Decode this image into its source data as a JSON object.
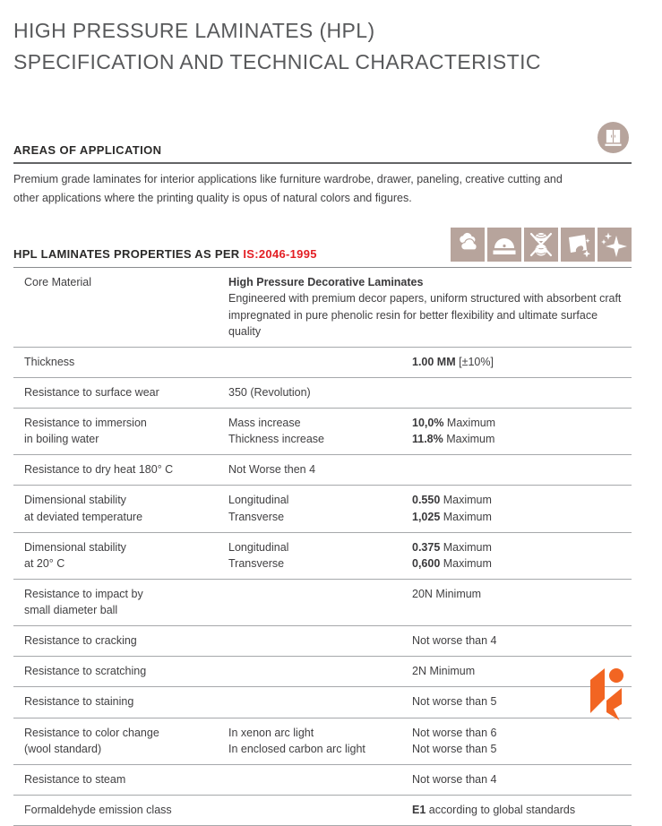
{
  "title": {
    "line1": "HIGH PRESSURE LAMINATES (HPL)",
    "line2": "SPECIFICATION AND TECHNICAL CHARACTERISTIC"
  },
  "areas": {
    "heading": "AREAS OF APPLICATION",
    "body_line1": "Premium grade laminates for interior applications like furniture wardrobe, drawer, paneling, creative cutting and",
    "body_line2": "other applications where the printing quality is opus of natural colors and figures.",
    "icon": "wardrobe-icon"
  },
  "properties_header": {
    "heading_prefix": "HPL LAMINATES PROPERTIES AS PER ",
    "standard": "IS:2046-1995",
    "icons": [
      "clouds-icon",
      "saw-blade-icon",
      "no-yarn-icon",
      "easy-clean-icon",
      "sparkle-icon"
    ]
  },
  "colors": {
    "accent_red": "#e31e24",
    "icon_taupe": "#b7a49c",
    "logo_orange": "#f26522",
    "title_gray": "#58595b"
  },
  "table": {
    "rows": [
      {
        "cells": [
          {
            "lines": [
              {
                "t": "Core Material"
              }
            ]
          },
          {
            "span": true,
            "lines": [
              {
                "b": "High Pressure Decorative Laminates"
              },
              {
                "t": "Engineered with premium decor papers, uniform structured with absorbent craft"
              },
              {
                "t": "impregnated in pure phenolic resin for better flexibility and ultimate surface quality"
              }
            ]
          }
        ]
      },
      {
        "cells": [
          {
            "lines": [
              {
                "t": "Thickness"
              }
            ]
          },
          {
            "lines": []
          },
          {
            "lines": [
              {
                "b": "1.00 MM",
                "t": " [±10%]"
              }
            ]
          }
        ]
      },
      {
        "cells": [
          {
            "lines": [
              {
                "t": "Resistance to surface wear"
              }
            ]
          },
          {
            "lines": [
              {
                "t": "350 (Revolution)"
              }
            ]
          },
          {
            "lines": []
          }
        ]
      },
      {
        "cells": [
          {
            "lines": [
              {
                "t": "Resistance to immersion"
              },
              {
                "t": "in boiling water"
              }
            ]
          },
          {
            "lines": [
              {
                "t": "Mass increase"
              },
              {
                "t": "Thickness increase"
              }
            ]
          },
          {
            "lines": [
              {
                "b": "10,0%",
                "t": " Maximum"
              },
              {
                "b": "11.8%",
                "t": " Maximum"
              }
            ]
          }
        ]
      },
      {
        "cells": [
          {
            "lines": [
              {
                "t": "Resistance to dry heat 180° C"
              }
            ]
          },
          {
            "lines": [
              {
                "t": "Not Worse then 4"
              }
            ]
          },
          {
            "lines": []
          }
        ]
      },
      {
        "cells": [
          {
            "lines": [
              {
                "t": "Dimensional stability"
              },
              {
                "t": "at deviated temperature"
              }
            ]
          },
          {
            "lines": [
              {
                "t": "Longitudinal"
              },
              {
                "t": "Transverse"
              }
            ]
          },
          {
            "lines": [
              {
                "b": "0.550",
                "t": " Maximum"
              },
              {
                "b": "1,025",
                "t": " Maximum"
              }
            ]
          }
        ]
      },
      {
        "cells": [
          {
            "lines": [
              {
                "t": "Dimensional stability"
              },
              {
                "t": "at 20° C"
              }
            ]
          },
          {
            "lines": [
              {
                "t": "Longitudinal"
              },
              {
                "t": "Transverse"
              }
            ]
          },
          {
            "lines": [
              {
                "b": "0.375",
                "t": " Maximum"
              },
              {
                "b": "0,600",
                "t": " Maximum"
              }
            ]
          }
        ]
      },
      {
        "cells": [
          {
            "lines": [
              {
                "t": "Resistance to impact by"
              },
              {
                "t": "small diameter ball"
              }
            ]
          },
          {
            "lines": []
          },
          {
            "lines": [
              {
                "t": "20N Minimum"
              }
            ]
          }
        ]
      },
      {
        "cells": [
          {
            "lines": [
              {
                "t": "Resistance to cracking"
              }
            ]
          },
          {
            "lines": []
          },
          {
            "lines": [
              {
                "t": "Not worse than 4"
              }
            ]
          }
        ]
      },
      {
        "cells": [
          {
            "lines": [
              {
                "t": "Resistance to scratching"
              }
            ]
          },
          {
            "lines": []
          },
          {
            "lines": [
              {
                "t": "2N Minimum"
              }
            ]
          }
        ]
      },
      {
        "cells": [
          {
            "lines": [
              {
                "t": "Resistance to staining"
              }
            ]
          },
          {
            "lines": []
          },
          {
            "lines": [
              {
                "t": "Not worse than 5"
              }
            ]
          }
        ]
      },
      {
        "cells": [
          {
            "lines": [
              {
                "t": "Resistance to color change"
              },
              {
                "t": "(wool standard)"
              }
            ]
          },
          {
            "lines": [
              {
                "t": "In xenon arc light"
              },
              {
                "t": "In enclosed carbon arc light"
              }
            ]
          },
          {
            "lines": [
              {
                "t": "Not worse than 6"
              },
              {
                "t": "Not worse than 5"
              }
            ]
          }
        ]
      },
      {
        "cells": [
          {
            "lines": [
              {
                "t": "Resistance to steam"
              }
            ]
          },
          {
            "lines": []
          },
          {
            "lines": [
              {
                "t": "Not worse than 4"
              }
            ]
          }
        ]
      },
      {
        "cells": [
          {
            "lines": [
              {
                "t": "Formaldehyde emission class"
              }
            ]
          },
          {
            "lines": []
          },
          {
            "lines": [
              {
                "b": "E1",
                "t": " according to global standards"
              }
            ]
          }
        ]
      }
    ]
  }
}
